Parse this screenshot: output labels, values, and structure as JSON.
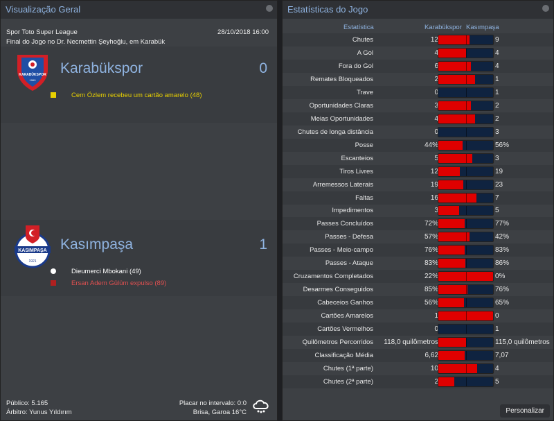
{
  "left": {
    "title": "Visualização Geral",
    "competition": "Spor Toto Super League",
    "datetime": "28/10/2018 16:00",
    "venue": "Final do Jogo no Dr. Necmettin Şeyhoğlu, em Karabük",
    "home": {
      "name": "Karabükspor",
      "score": "0",
      "logo_text": "KARABÜKSPOR",
      "logo_year": "1969",
      "events": [
        {
          "icon": "yellow-card",
          "text": "Cem Özlem recebeu um cartão amarelo (48)",
          "color": "#e8d000"
        }
      ]
    },
    "away": {
      "name": "Kasımpaşa",
      "score": "1",
      "logo_text": "KASIMPAŞA",
      "logo_year": "1921",
      "events": [
        {
          "icon": "goal-ball",
          "text": "Dieumerci Mbokani (49)",
          "color": "#ffffff"
        },
        {
          "icon": "red-card",
          "text": "Ersan Adem Gülüm expulso (89)",
          "color": "#e05050"
        }
      ]
    },
    "attendance": "Público: 5.165",
    "referee": "Árbitro: Yunus Yıldırım",
    "halftime": "Placar no intervalo: 0:0",
    "weather": "Brisa, Garoa 16°C",
    "weather_icon": "rain-cloud"
  },
  "right": {
    "title": "Estatísticas do Jogo",
    "col_stat": "Estatística",
    "col_home": "Karabükspor",
    "col_away": "Kasımpaşa",
    "customize": "Personalizar",
    "home_color": "#e00000",
    "away_color": "#0f2340",
    "stats": [
      {
        "label": "Chutes",
        "home": "12",
        "away": "9"
      },
      {
        "label": "A Gol",
        "home": "4",
        "away": "4"
      },
      {
        "label": "Fora do Gol",
        "home": "6",
        "away": "4"
      },
      {
        "label": "Remates Bloqueados",
        "home": "2",
        "away": "1"
      },
      {
        "label": "Trave",
        "home": "0",
        "away": "1"
      },
      {
        "label": "Oportunidades Claras",
        "home": "3",
        "away": "2"
      },
      {
        "label": "Meias Oportunidades",
        "home": "4",
        "away": "2"
      },
      {
        "label": "Chutes de longa distância",
        "home": "0",
        "away": "3"
      },
      {
        "label": "Posse",
        "home": "44%",
        "away": "56%"
      },
      {
        "label": "Escanteios",
        "home": "5",
        "away": "3"
      },
      {
        "label": "Tiros Livres",
        "home": "12",
        "away": "19"
      },
      {
        "label": "Arremessos Laterais",
        "home": "19",
        "away": "23"
      },
      {
        "label": "Faltas",
        "home": "16",
        "away": "7"
      },
      {
        "label": "Impedimentos",
        "home": "3",
        "away": "5"
      },
      {
        "label": "Passes Concluídos",
        "home": "72%",
        "away": "77%"
      },
      {
        "label": "Passes - Defesa",
        "home": "57%",
        "away": "42%"
      },
      {
        "label": "Passes - Meio-campo",
        "home": "76%",
        "away": "83%"
      },
      {
        "label": "Passes - Ataque",
        "home": "83%",
        "away": "86%"
      },
      {
        "label": "Cruzamentos Completados",
        "home": "22%",
        "away": "0%"
      },
      {
        "label": "Desarmes Conseguidos",
        "home": "85%",
        "away": "76%"
      },
      {
        "label": "Cabeceios Ganhos",
        "home": "56%",
        "away": "65%"
      },
      {
        "label": "Cartões Amarelos",
        "home": "1",
        "away": "0"
      },
      {
        "label": "Cartões Vermelhos",
        "home": "0",
        "away": "1"
      },
      {
        "label": "Quilômetros Percorridos",
        "home": "118,0 quilômetros",
        "away": "115,0 quilômetros"
      },
      {
        "label": "Classificação Média",
        "home": "6,62",
        "away": "7,07"
      },
      {
        "label": "Chutes (1ª parte)",
        "home": "10",
        "away": "4"
      },
      {
        "label": "Chutes (2ª parte)",
        "home": "2",
        "away": "5"
      }
    ]
  }
}
